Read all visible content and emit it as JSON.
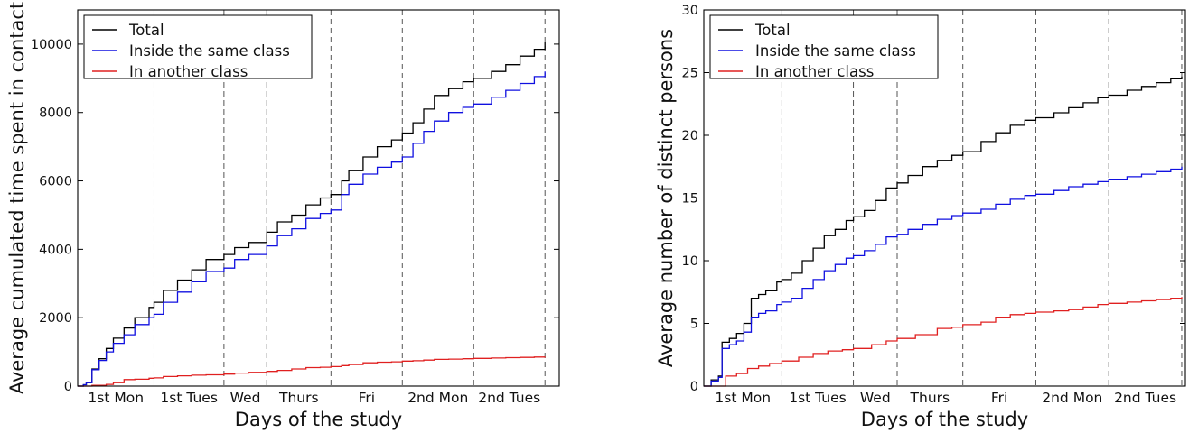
{
  "chart_data": [
    {
      "type": "line",
      "xlabel": "Days of the study",
      "ylabel": "Average cumulated time spent in contact",
      "ylim": [
        0,
        11000
      ],
      "yticks": [
        0,
        2000,
        4000,
        6000,
        8000,
        10000
      ],
      "grid": false,
      "legend_position": "top-left",
      "day_labels": [
        "1st Mon",
        "1st Tues",
        "Wed",
        "Thurs",
        "Fri",
        "2nd Mon",
        "2nd Tues"
      ],
      "day_boundaries": [
        0,
        1.07,
        2.05,
        2.65,
        3.55,
        4.55,
        5.55,
        6.55
      ],
      "series": [
        {
          "name": "Total",
          "color": "#000000",
          "x": [
            0,
            0.08,
            0.12,
            0.2,
            0.3,
            0.4,
            0.5,
            0.65,
            0.8,
            1.0,
            1.07,
            1.2,
            1.4,
            1.6,
            1.8,
            2.05,
            2.2,
            2.4,
            2.65,
            2.8,
            3.0,
            3.2,
            3.4,
            3.55,
            3.7,
            3.8,
            4.0,
            4.2,
            4.4,
            4.55,
            4.7,
            4.85,
            5.0,
            5.2,
            5.4,
            5.55,
            5.8,
            6.0,
            6.2,
            6.4,
            6.55
          ],
          "values": [
            0,
            40,
            100,
            500,
            800,
            1100,
            1400,
            1700,
            2000,
            2300,
            2450,
            2800,
            3100,
            3400,
            3700,
            3850,
            4050,
            4200,
            4500,
            4800,
            5000,
            5300,
            5500,
            5600,
            6000,
            6300,
            6700,
            7000,
            7200,
            7400,
            7700,
            8100,
            8500,
            8700,
            8900,
            9000,
            9200,
            9400,
            9650,
            9850,
            10050
          ]
        },
        {
          "name": "Inside the same class",
          "color": "#1010e0",
          "x": [
            0,
            0.08,
            0.12,
            0.2,
            0.3,
            0.4,
            0.5,
            0.65,
            0.8,
            1.0,
            1.07,
            1.2,
            1.4,
            1.6,
            1.8,
            2.05,
            2.2,
            2.4,
            2.65,
            2.8,
            3.0,
            3.2,
            3.4,
            3.55,
            3.7,
            3.8,
            4.0,
            4.2,
            4.4,
            4.55,
            4.7,
            4.85,
            5.0,
            5.2,
            5.4,
            5.55,
            5.8,
            6.0,
            6.2,
            6.4,
            6.55
          ],
          "values": [
            0,
            40,
            100,
            480,
            750,
            1000,
            1250,
            1500,
            1800,
            2000,
            2100,
            2450,
            2750,
            3050,
            3350,
            3450,
            3700,
            3850,
            4100,
            4400,
            4600,
            4900,
            5050,
            5150,
            5600,
            5900,
            6200,
            6400,
            6550,
            6700,
            7100,
            7450,
            7750,
            8000,
            8150,
            8250,
            8450,
            8650,
            8850,
            9050,
            9200
          ]
        },
        {
          "name": "In another class",
          "color": "#e02020",
          "x": [
            0,
            0.2,
            0.4,
            0.5,
            0.65,
            0.8,
            1.0,
            1.07,
            1.2,
            1.4,
            1.6,
            1.8,
            2.05,
            2.2,
            2.4,
            2.65,
            2.8,
            3.0,
            3.2,
            3.4,
            3.55,
            3.7,
            3.8,
            4.0,
            4.2,
            4.4,
            4.55,
            4.7,
            4.85,
            5.0,
            5.2,
            5.4,
            5.55,
            5.8,
            6.0,
            6.2,
            6.4,
            6.55
          ],
          "values": [
            0,
            20,
            50,
            100,
            190,
            200,
            230,
            240,
            280,
            300,
            320,
            330,
            350,
            380,
            400,
            430,
            460,
            500,
            540,
            550,
            570,
            600,
            630,
            680,
            700,
            710,
            730,
            740,
            760,
            780,
            790,
            800,
            810,
            820,
            830,
            840,
            850,
            860
          ]
        }
      ]
    },
    {
      "type": "line",
      "xlabel": "Days of the study",
      "ylabel": "Average number of distinct persons",
      "ylim": [
        0,
        30
      ],
      "yticks": [
        0,
        5,
        10,
        15,
        20,
        25,
        30
      ],
      "grid": false,
      "legend_position": "top-left",
      "day_labels": [
        "1st Mon",
        "1st Tues",
        "Wed",
        "Thurs",
        "Fri",
        "2nd Mon",
        "2nd Tues"
      ],
      "day_boundaries": [
        0,
        1.07,
        2.05,
        2.65,
        3.55,
        4.55,
        5.55,
        6.55
      ],
      "series": [
        {
          "name": "Total",
          "color": "#000000",
          "x": [
            0,
            0.1,
            0.2,
            0.25,
            0.35,
            0.45,
            0.55,
            0.65,
            0.75,
            0.85,
            1.0,
            1.07,
            1.2,
            1.35,
            1.5,
            1.65,
            1.8,
            1.95,
            2.05,
            2.2,
            2.35,
            2.5,
            2.65,
            2.8,
            3.0,
            3.2,
            3.4,
            3.55,
            3.8,
            4.0,
            4.2,
            4.4,
            4.55,
            4.8,
            5.0,
            5.2,
            5.4,
            5.55,
            5.8,
            6.0,
            6.2,
            6.4,
            6.55
          ],
          "values": [
            0,
            0.5,
            0.8,
            3.5,
            3.8,
            4.2,
            5.0,
            7.0,
            7.3,
            7.6,
            8.3,
            8.5,
            9.0,
            10.0,
            11.0,
            12.0,
            12.5,
            13.2,
            13.5,
            14.0,
            14.8,
            15.8,
            16.2,
            16.8,
            17.5,
            18.0,
            18.4,
            18.7,
            19.5,
            20.2,
            20.8,
            21.2,
            21.4,
            21.8,
            22.2,
            22.6,
            23.0,
            23.2,
            23.6,
            23.9,
            24.2,
            24.5,
            24.7
          ]
        },
        {
          "name": "Inside the same class",
          "color": "#1010e0",
          "x": [
            0,
            0.1,
            0.2,
            0.25,
            0.35,
            0.45,
            0.55,
            0.65,
            0.75,
            0.85,
            1.0,
            1.07,
            1.2,
            1.35,
            1.5,
            1.65,
            1.8,
            1.95,
            2.05,
            2.2,
            2.35,
            2.5,
            2.65,
            2.8,
            3.0,
            3.2,
            3.4,
            3.55,
            3.8,
            4.0,
            4.2,
            4.4,
            4.55,
            4.8,
            5.0,
            5.2,
            5.4,
            5.55,
            5.8,
            6.0,
            6.2,
            6.4,
            6.55
          ],
          "values": [
            0,
            0.4,
            0.7,
            3.0,
            3.3,
            3.6,
            4.3,
            5.5,
            5.8,
            6.0,
            6.5,
            6.7,
            7.0,
            7.8,
            8.5,
            9.2,
            9.7,
            10.2,
            10.4,
            10.8,
            11.3,
            11.9,
            12.1,
            12.5,
            12.9,
            13.3,
            13.6,
            13.8,
            14.1,
            14.5,
            14.9,
            15.2,
            15.3,
            15.6,
            15.9,
            16.1,
            16.3,
            16.5,
            16.7,
            16.9,
            17.1,
            17.3,
            17.5
          ]
        },
        {
          "name": "In another class",
          "color": "#e02020",
          "x": [
            0,
            0.2,
            0.3,
            0.45,
            0.6,
            0.75,
            0.9,
            1.07,
            1.3,
            1.5,
            1.7,
            1.9,
            2.05,
            2.3,
            2.5,
            2.65,
            2.9,
            3.2,
            3.4,
            3.55,
            3.8,
            4.0,
            4.2,
            4.4,
            4.55,
            4.8,
            5.0,
            5.2,
            5.4,
            5.55,
            5.8,
            6.0,
            6.2,
            6.4,
            6.55
          ],
          "values": [
            0,
            0,
            0.8,
            1.0,
            1.4,
            1.6,
            1.8,
            2.0,
            2.3,
            2.6,
            2.8,
            2.9,
            3.0,
            3.3,
            3.6,
            3.8,
            4.1,
            4.6,
            4.7,
            4.9,
            5.1,
            5.5,
            5.7,
            5.8,
            5.9,
            6.0,
            6.1,
            6.3,
            6.5,
            6.6,
            6.7,
            6.8,
            6.9,
            7.0,
            7.1
          ]
        }
      ]
    }
  ]
}
